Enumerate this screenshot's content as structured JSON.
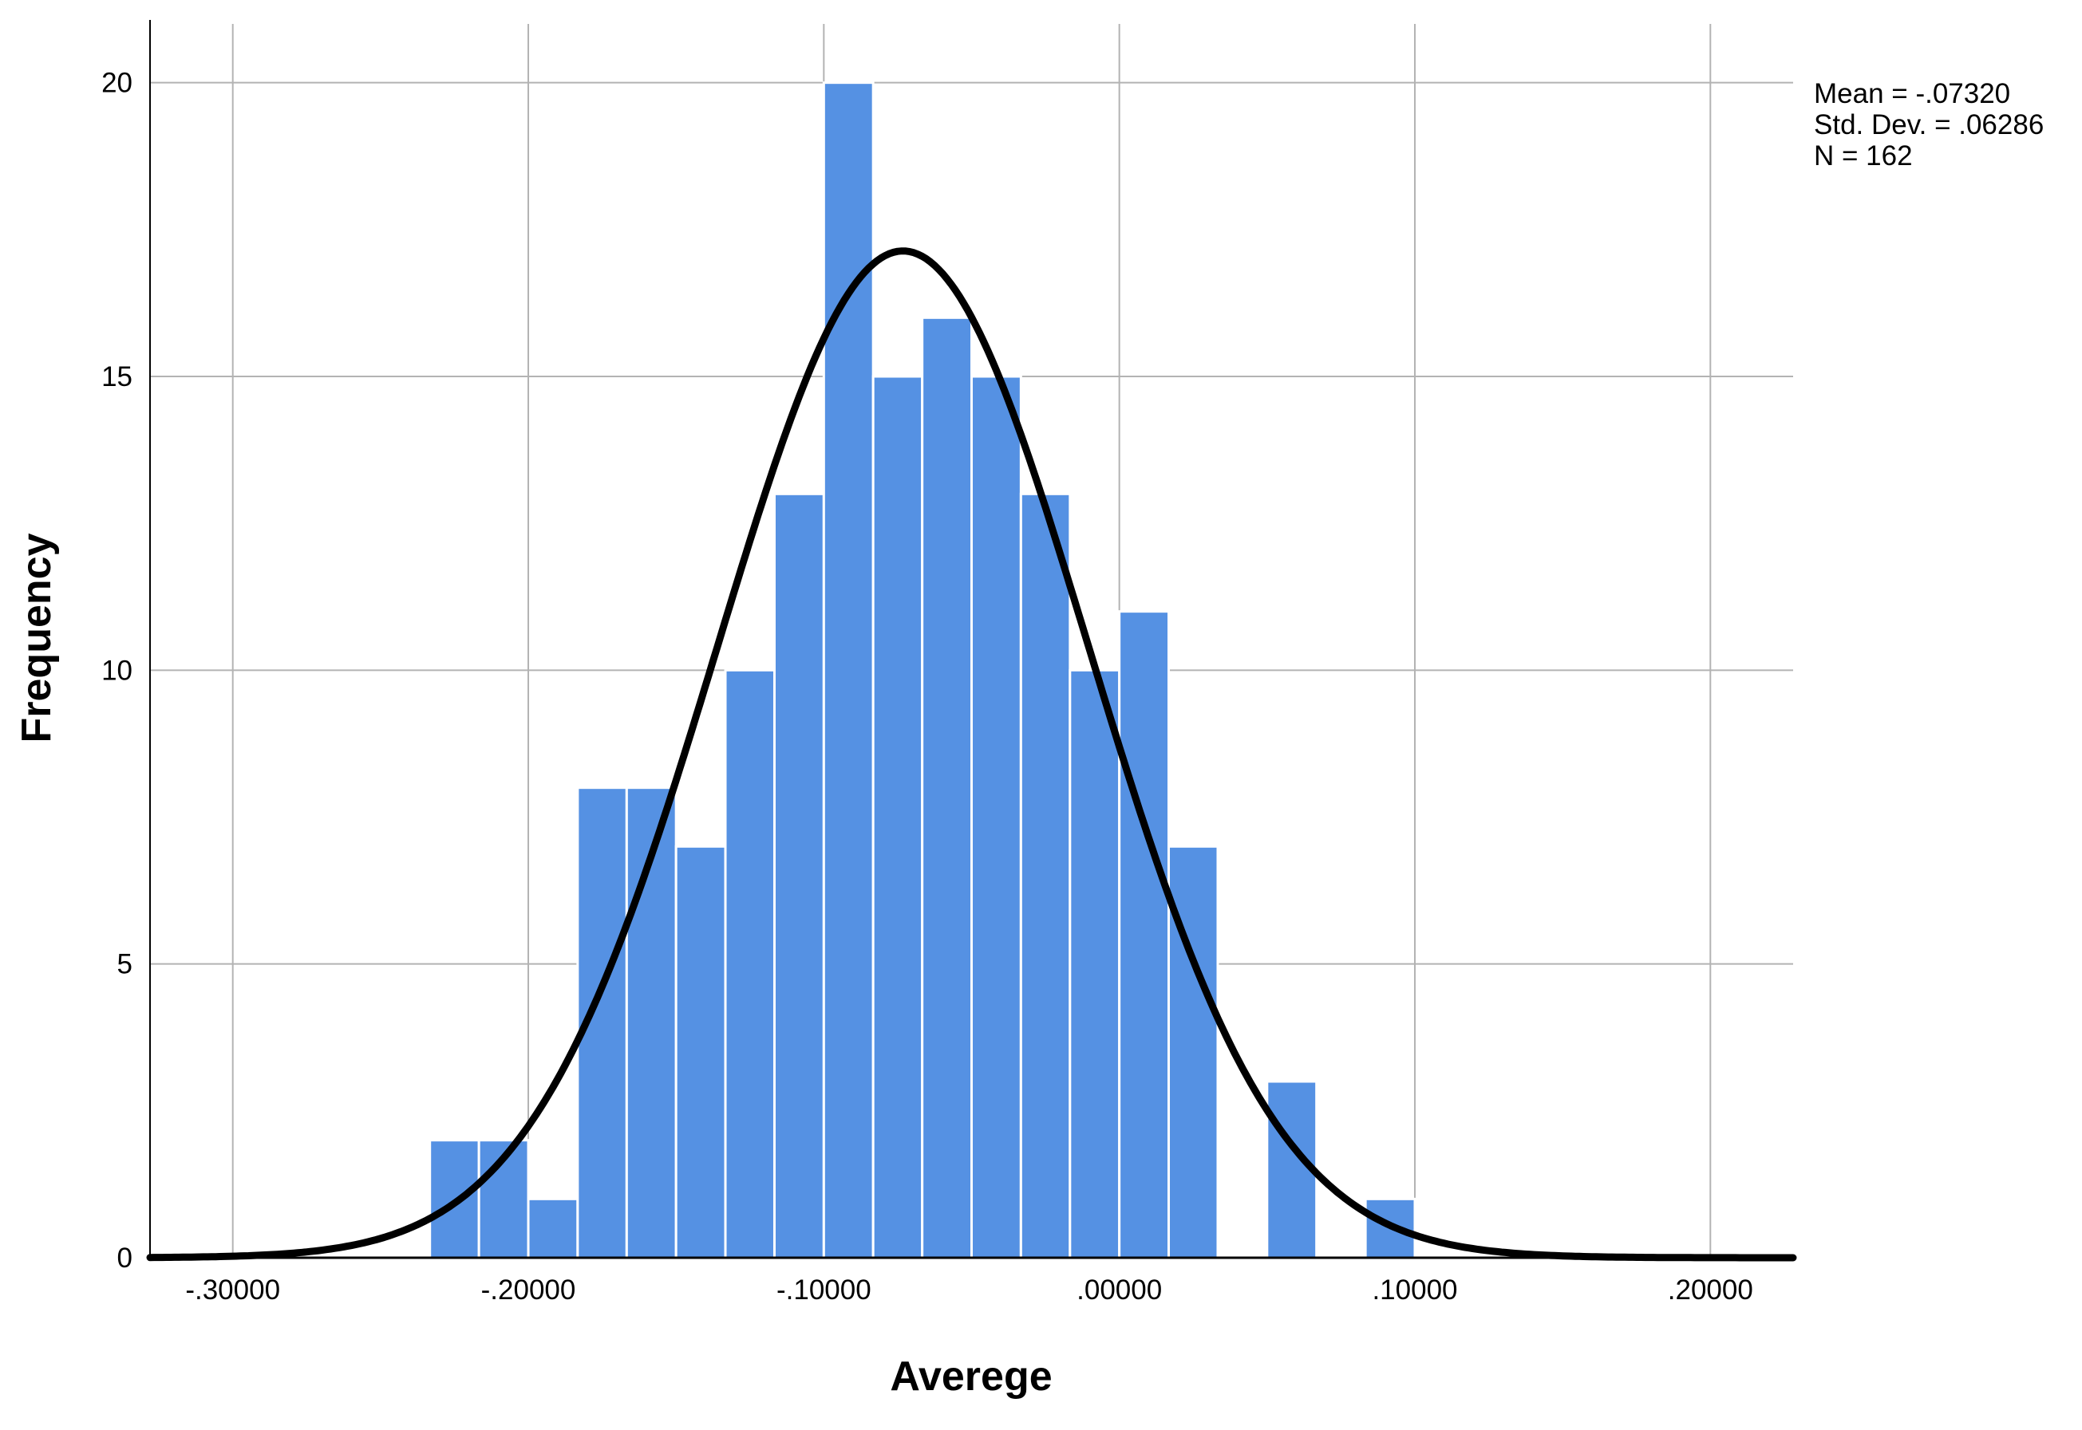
{
  "chart_data": {
    "type": "bar",
    "subtype": "histogram",
    "xlabel": "Averege",
    "ylabel": "Frequency",
    "xlim": [
      -0.328,
      0.228
    ],
    "ylim": [
      0,
      21
    ],
    "grid": true,
    "bin_width": 0.0166667,
    "bins": [
      {
        "start": -0.2333,
        "end": -0.2167,
        "count": 2
      },
      {
        "start": -0.2167,
        "end": -0.2,
        "count": 2
      },
      {
        "start": -0.2,
        "end": -0.1833,
        "count": 1
      },
      {
        "start": -0.1833,
        "end": -0.1667,
        "count": 8
      },
      {
        "start": -0.1667,
        "end": -0.15,
        "count": 8
      },
      {
        "start": -0.15,
        "end": -0.1333,
        "count": 7
      },
      {
        "start": -0.1333,
        "end": -0.1167,
        "count": 10
      },
      {
        "start": -0.1167,
        "end": -0.1,
        "count": 13
      },
      {
        "start": -0.1,
        "end": -0.0833,
        "count": 20
      },
      {
        "start": -0.0833,
        "end": -0.0667,
        "count": 15
      },
      {
        "start": -0.0667,
        "end": -0.05,
        "count": 16
      },
      {
        "start": -0.05,
        "end": -0.0333,
        "count": 15
      },
      {
        "start": -0.0333,
        "end": -0.0167,
        "count": 13
      },
      {
        "start": -0.0167,
        "end": 0.0,
        "count": 10
      },
      {
        "start": 0.0,
        "end": 0.0167,
        "count": 11
      },
      {
        "start": 0.0167,
        "end": 0.0333,
        "count": 7
      },
      {
        "start": 0.0333,
        "end": 0.05,
        "count": 0
      },
      {
        "start": 0.05,
        "end": 0.0667,
        "count": 3
      },
      {
        "start": 0.0667,
        "end": 0.0833,
        "count": 0
      },
      {
        "start": 0.0833,
        "end": 0.1,
        "count": 1
      }
    ],
    "x_ticks": [
      {
        "value": -0.3,
        "label": "-.30000"
      },
      {
        "value": -0.2,
        "label": "-.20000"
      },
      {
        "value": -0.1,
        "label": "-.10000"
      },
      {
        "value": 0.0,
        "label": ".00000"
      },
      {
        "value": 0.1,
        "label": ".10000"
      },
      {
        "value": 0.2,
        "label": ".20000"
      }
    ],
    "y_ticks": [
      {
        "value": 0,
        "label": "0"
      },
      {
        "value": 5,
        "label": "5"
      },
      {
        "value": 10,
        "label": "10"
      },
      {
        "value": 15,
        "label": "15"
      },
      {
        "value": 20,
        "label": "20"
      }
    ],
    "normal_curve": {
      "mean": -0.0732,
      "std_dev": 0.06286,
      "n": 162
    },
    "stats_text": [
      "Mean = -.07320",
      "Std. Dev. = .06286",
      "N = 162"
    ],
    "colors": {
      "bar_fill": "#5591E3",
      "bar_edge": "#FFFFFF",
      "curve": "#000000",
      "grid": "#B3B3B3",
      "axis": "#000000"
    }
  }
}
